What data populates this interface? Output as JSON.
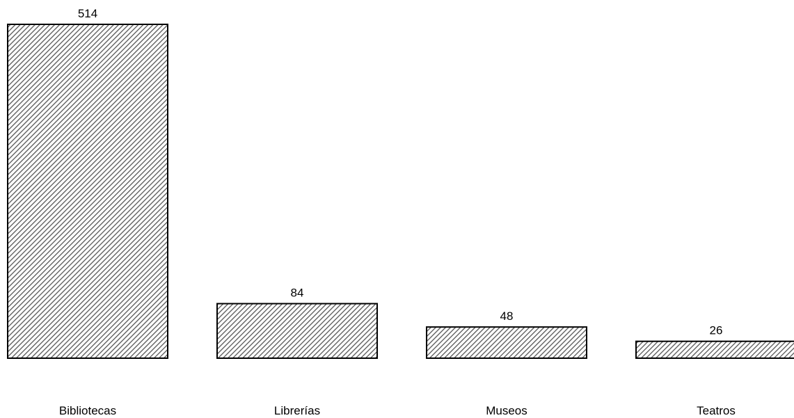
{
  "chart_data": {
    "type": "bar",
    "categories": [
      "Bibliotecas",
      "Librerías",
      "Museos",
      "Teatros"
    ],
    "values": [
      514,
      84,
      48,
      26
    ],
    "data_labels": [
      "514",
      "84",
      "48",
      "26"
    ],
    "title": "",
    "xlabel": "",
    "ylabel": "",
    "ylim": [
      0,
      514
    ],
    "grid": false,
    "legend": "none",
    "bar_fill": "diagonal-hatch",
    "colors": {
      "hatch": "#555555",
      "hatch_background": "#ffffff",
      "bar_border": "#000000",
      "text": "#000000"
    }
  }
}
